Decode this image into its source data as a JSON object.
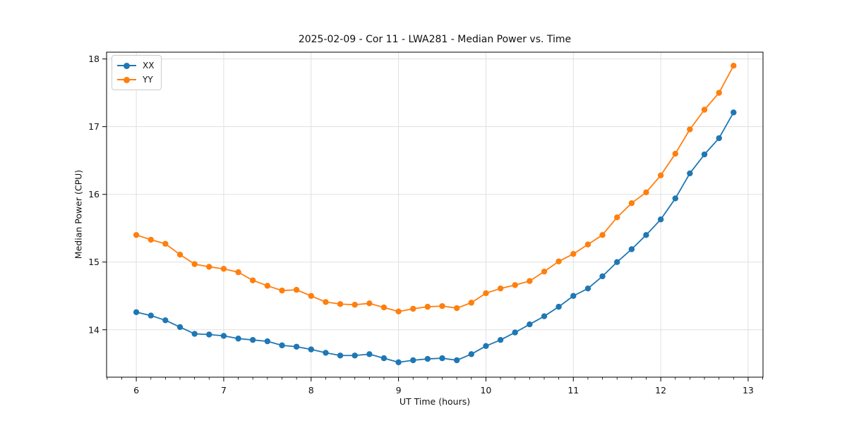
{
  "chart_data": {
    "type": "line",
    "title": "2025-02-09 - Cor 11 - LWA281 - Median Power vs. Time",
    "xlabel": "UT Time (hours)",
    "ylabel": "Median Power (CPU)",
    "xlim": [
      5.66,
      13.17
    ],
    "ylim": [
      13.3,
      18.1
    ],
    "x_ticks": [
      6,
      7,
      8,
      9,
      10,
      11,
      12,
      13
    ],
    "y_ticks": [
      14,
      15,
      16,
      17,
      18
    ],
    "x_minor_tick_interval": 0.1667,
    "grid": true,
    "grid_color": "#e0e0e0",
    "legend_position": "upper left",
    "marker": "circle",
    "x": [
      6.0,
      6.167,
      6.333,
      6.5,
      6.667,
      6.833,
      7.0,
      7.167,
      7.333,
      7.5,
      7.667,
      7.833,
      8.0,
      8.167,
      8.333,
      8.5,
      8.667,
      8.833,
      9.0,
      9.167,
      9.333,
      9.5,
      9.667,
      9.833,
      10.0,
      10.167,
      10.333,
      10.5,
      10.667,
      10.833,
      11.0,
      11.167,
      11.333,
      11.5,
      11.667,
      11.833,
      12.0,
      12.167,
      12.333,
      12.5,
      12.667,
      12.833
    ],
    "series": [
      {
        "name": "XX",
        "color": "#1f77b4",
        "values": [
          14.26,
          14.21,
          14.14,
          14.04,
          13.94,
          13.93,
          13.91,
          13.87,
          13.85,
          13.83,
          13.77,
          13.75,
          13.71,
          13.66,
          13.62,
          13.62,
          13.64,
          13.58,
          13.52,
          13.55,
          13.57,
          13.58,
          13.55,
          13.64,
          13.76,
          13.85,
          13.96,
          14.08,
          14.2,
          14.34,
          14.5,
          14.61,
          14.79,
          15.0,
          15.19,
          15.4,
          15.63,
          15.94,
          16.31,
          16.59,
          16.83,
          17.21
        ]
      },
      {
        "name": "YY",
        "color": "#ff7f0e",
        "values": [
          15.4,
          15.33,
          15.27,
          15.11,
          14.97,
          14.93,
          14.9,
          14.85,
          14.73,
          14.65,
          14.58,
          14.59,
          14.5,
          14.41,
          14.38,
          14.37,
          14.39,
          14.33,
          14.27,
          14.31,
          14.34,
          14.35,
          14.32,
          14.4,
          14.54,
          14.61,
          14.66,
          14.72,
          14.86,
          15.01,
          15.12,
          15.26,
          15.4,
          15.66,
          15.87,
          16.03,
          16.28,
          16.6,
          16.96,
          17.25,
          17.5,
          17.9
        ]
      }
    ]
  }
}
